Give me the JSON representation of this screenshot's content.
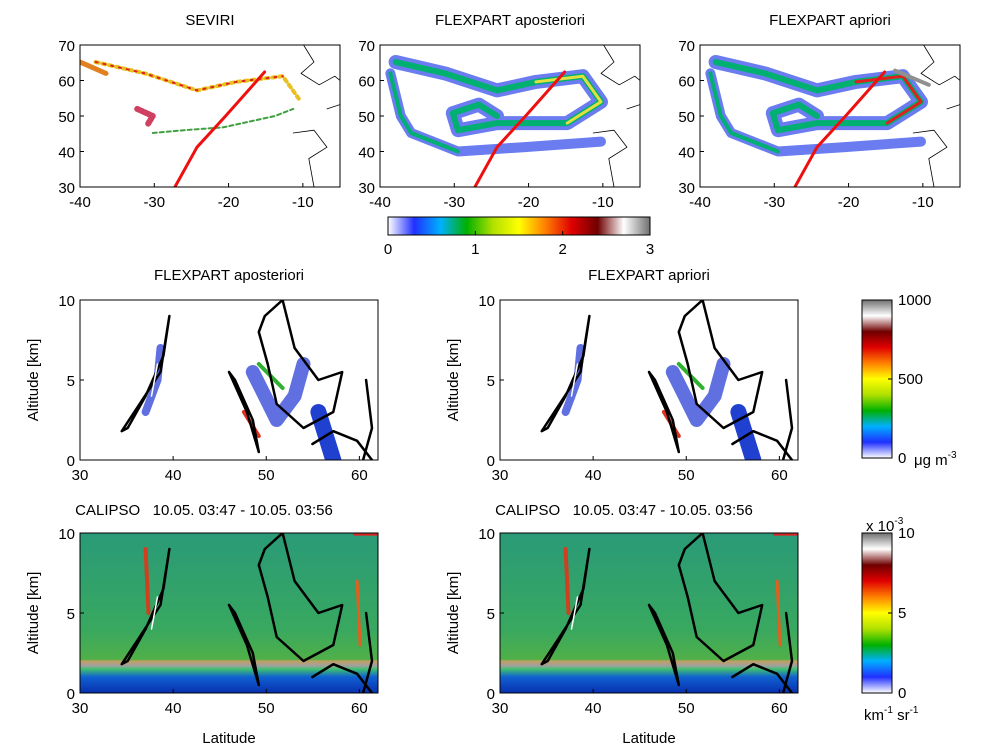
{
  "chart_data": [
    {
      "type": "map",
      "title": "SEVIRI",
      "xlim": [
        -40,
        -5
      ],
      "ylim": [
        30,
        70
      ],
      "xticks": [
        -40,
        -30,
        -20,
        -10
      ],
      "yticks": [
        30,
        40,
        50,
        60,
        70
      ]
    },
    {
      "type": "map",
      "title": "FLEXPART aposteriori",
      "xlim": [
        -40,
        -5
      ],
      "ylim": [
        30,
        70
      ],
      "xticks": [
        -40,
        -30,
        -20,
        -10
      ],
      "yticks": [
        30,
        40,
        50,
        60,
        70
      ]
    },
    {
      "type": "map",
      "title": "FLEXPART apriori",
      "xlim": [
        -40,
        -5
      ],
      "ylim": [
        30,
        70
      ],
      "xticks": [
        -40,
        -30,
        -20,
        -10
      ],
      "yticks": [
        30,
        40,
        50,
        60,
        70
      ]
    },
    {
      "type": "colorbar",
      "orientation": "horizontal",
      "lim": [
        0,
        3
      ],
      "ticks": [
        0,
        1,
        2,
        3
      ],
      "colors": [
        "#ffffff",
        "#2030ff",
        "#00b0ff",
        "#00b000",
        "#b0e000",
        "#ffff00",
        "#ff8000",
        "#e00000",
        "#700000",
        "#ffffff",
        "#707070"
      ]
    },
    {
      "type": "curtain",
      "title": "FLEXPART aposteriori",
      "ylabel": "Altitude [km]",
      "xlim": [
        30,
        62
      ],
      "ylim": [
        0,
        10
      ],
      "xticks": [
        30,
        40,
        50,
        60
      ],
      "yticks": [
        0,
        5,
        10
      ]
    },
    {
      "type": "curtain",
      "title": "FLEXPART apriori",
      "ylabel": "Altitude [km]",
      "xlim": [
        30,
        62
      ],
      "ylim": [
        0,
        10
      ],
      "xticks": [
        30,
        40,
        50,
        60
      ],
      "yticks": [
        0,
        5,
        10
      ]
    },
    {
      "type": "colorbar",
      "orientation": "vertical",
      "lim": [
        0,
        1000
      ],
      "ticks": [
        0,
        500,
        1000
      ],
      "unit_parts": [
        {
          "text": "μg m",
          "sup": "-3"
        }
      ],
      "colors": [
        "#ffffff",
        "#2030ff",
        "#00b0ff",
        "#00b000",
        "#b0e000",
        "#ffff00",
        "#ff8000",
        "#e00000",
        "#700000",
        "#ffffff",
        "#707070"
      ]
    },
    {
      "type": "lidar",
      "title": "CALIPSO   10.05. 03:47 - 10.05. 03:56",
      "ylabel": "Altitude [km]",
      "xlabel": "Latitude",
      "xlim": [
        30,
        62
      ],
      "ylim": [
        0,
        10
      ],
      "xticks": [
        30,
        40,
        50,
        60
      ],
      "yticks": [
        0,
        5,
        10
      ]
    },
    {
      "type": "lidar",
      "title": "CALIPSO   10.05. 03:47 - 10.05. 03:56",
      "ylabel": "Altitude [km]",
      "xlabel": "Latitude",
      "xlim": [
        30,
        62
      ],
      "ylim": [
        0,
        10
      ],
      "xticks": [
        30,
        40,
        50,
        60
      ],
      "yticks": [
        0,
        5,
        10
      ]
    },
    {
      "type": "colorbar",
      "orientation": "vertical",
      "lim": [
        0,
        10
      ],
      "ticks": [
        0,
        5,
        10
      ],
      "multiplier": {
        "text": "x 10",
        "sup": "-3"
      },
      "unit_parts": [
        {
          "text": "km",
          "sup": "-1"
        },
        {
          "text": " sr",
          "sup": "-1"
        }
      ],
      "colors": [
        "#ffffff",
        "#2030ff",
        "#00b0ff",
        "#00b000",
        "#b0e000",
        "#ffff00",
        "#ff8000",
        "#e00000",
        "#700000",
        "#ffffff",
        "#707070"
      ]
    }
  ]
}
